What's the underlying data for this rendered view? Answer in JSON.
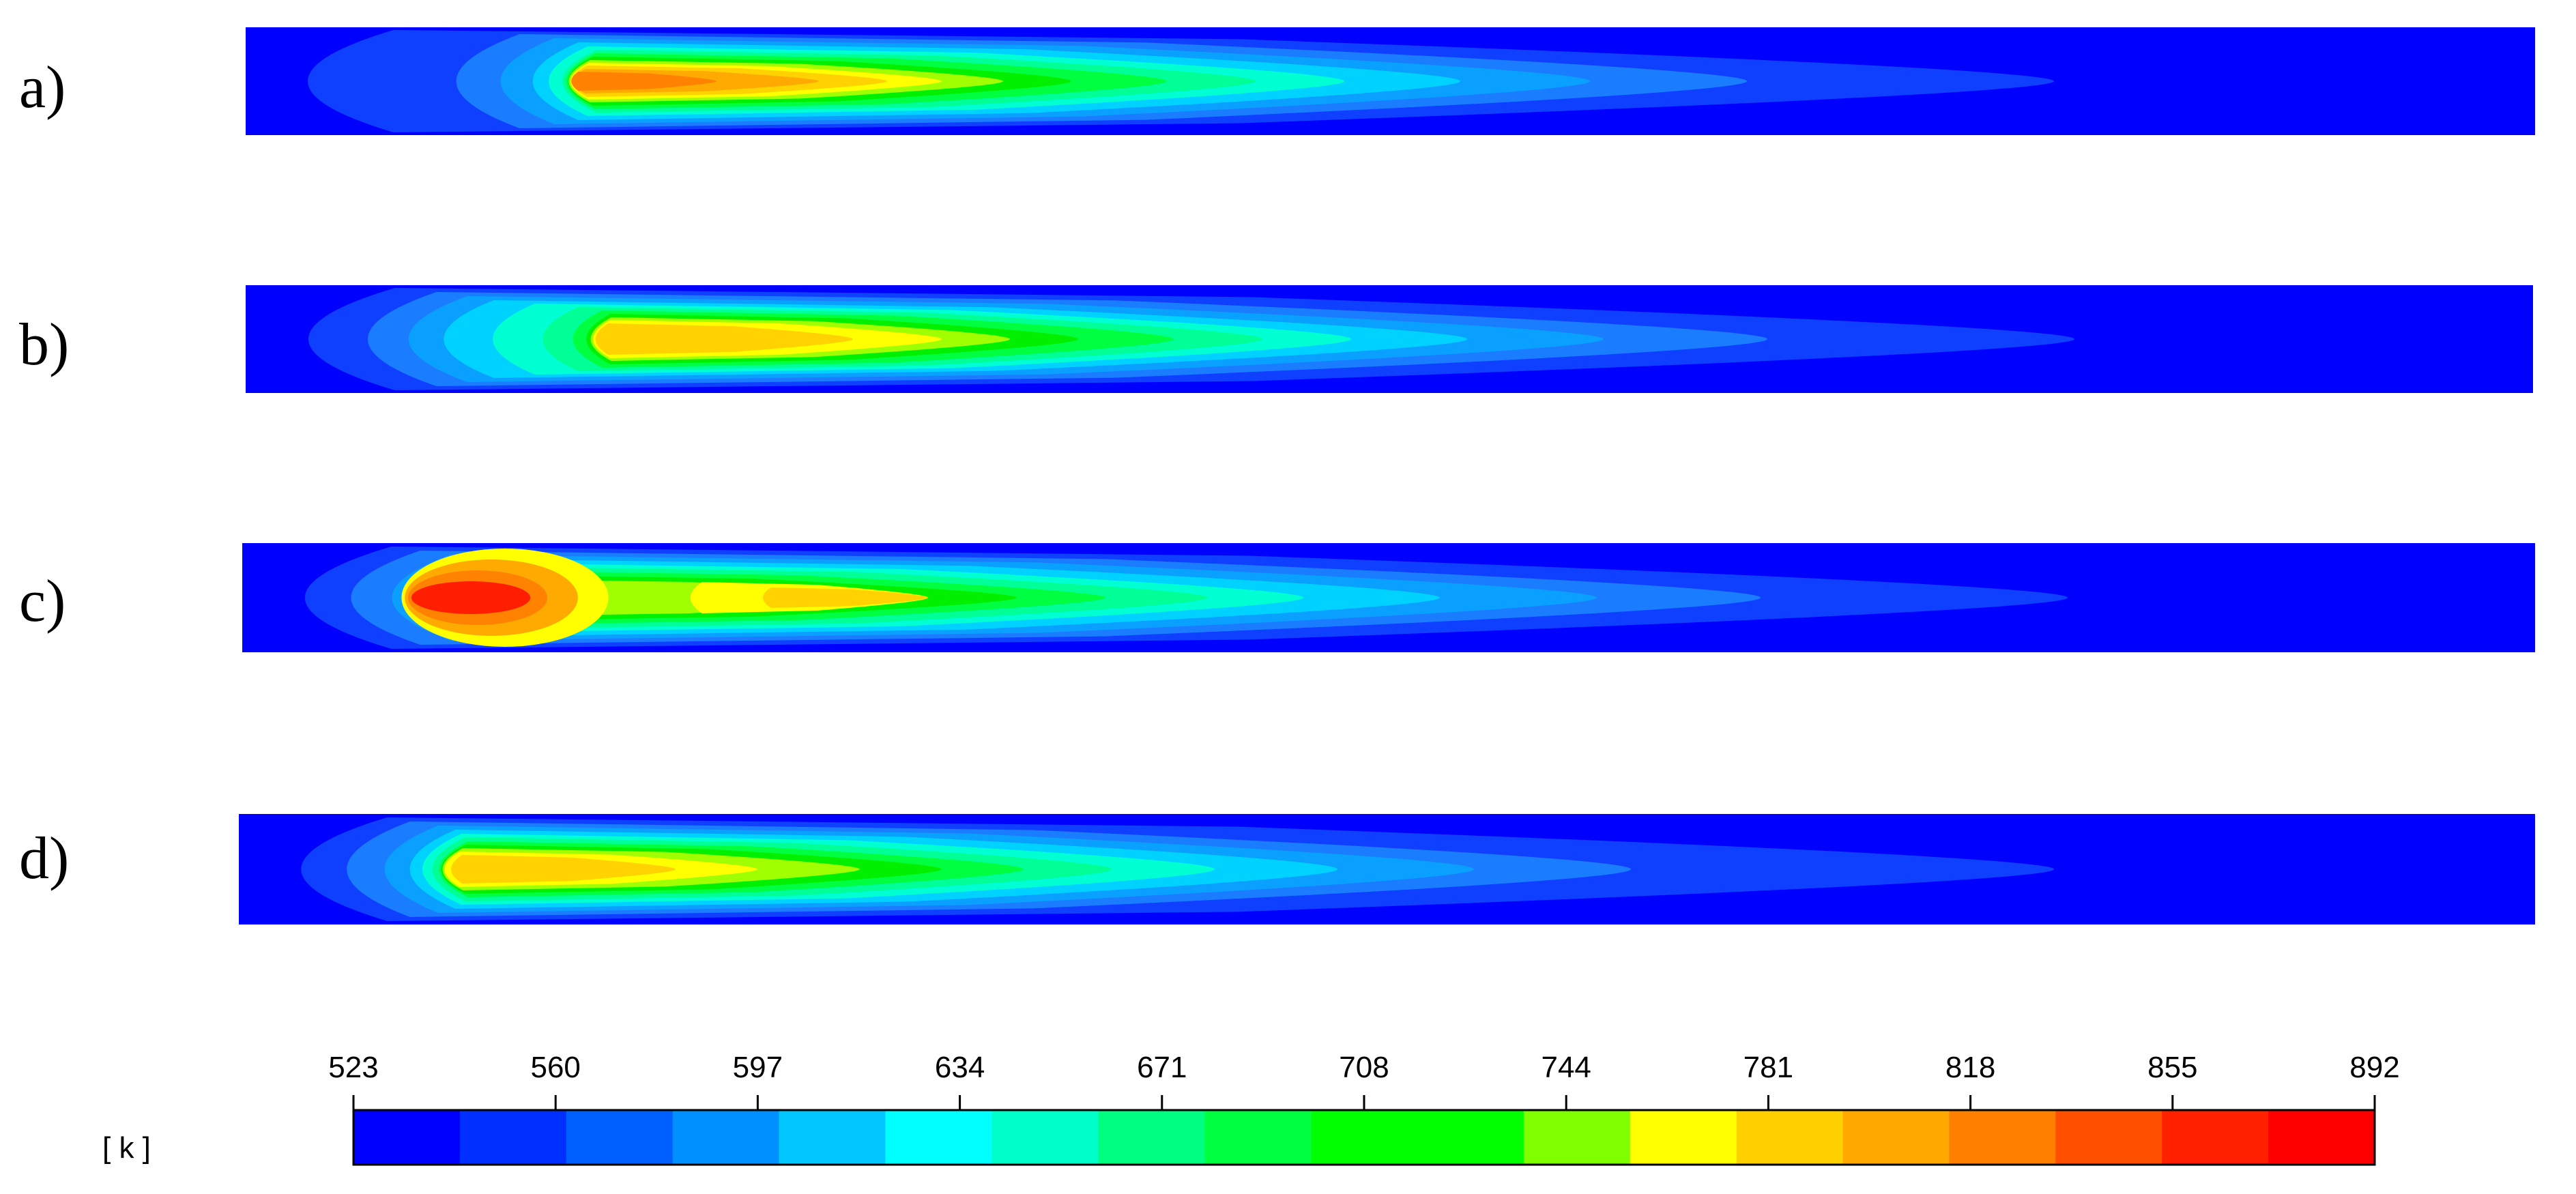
{
  "panels": [
    {
      "label": "a)",
      "id": "a"
    },
    {
      "label": "b)",
      "id": "b"
    },
    {
      "label": "c)",
      "id": "c"
    },
    {
      "label": "d)",
      "id": "d"
    }
  ],
  "colorbar": {
    "unit": "[ k ]",
    "ticks": [
      "523",
      "560",
      "597",
      "634",
      "671",
      "708",
      "744",
      "781",
      "818",
      "855",
      "892"
    ],
    "colors": [
      "#0000ff",
      "#0030ff",
      "#0060ff",
      "#0090ff",
      "#00c8ff",
      "#00ffff",
      "#00ffc8",
      "#00ff80",
      "#00ff40",
      "#00ff00",
      "#00ff00",
      "#80ff00",
      "#ffff00",
      "#ffd000",
      "#ffa800",
      "#ff8000",
      "#ff5000",
      "#ff2000",
      "#ff0000"
    ]
  },
  "colors": {
    "background_blue": "#0000ff",
    "ring_palette": [
      "#1040ff",
      "#1a7dff",
      "#0aa0ff",
      "#00d2ff",
      "#00ffd2",
      "#00ff96",
      "#00ff40",
      "#00f000",
      "#a0ff00",
      "#ffff00",
      "#ffd200",
      "#ffaa00",
      "#ff8200",
      "#ff5000",
      "#ff1e00"
    ]
  }
}
